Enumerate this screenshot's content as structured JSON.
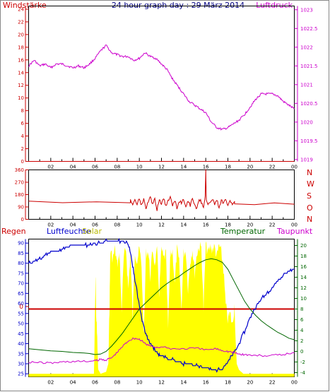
{
  "header": {
    "left_label": "Windstärke",
    "title": "24 hour graph day : 29 März 2014",
    "right_label": "Luftdruck"
  },
  "x_ticks": [
    "02",
    "04",
    "06",
    "08",
    "10",
    "12",
    "14",
    "16",
    "18",
    "20",
    "22",
    "00"
  ],
  "direction_labels": [
    "N",
    "W",
    "S",
    "O",
    "N"
  ],
  "bottom_header": {
    "regen": "Regen",
    "luftfeuchte": "Luftfeuchte",
    "solar": "Solar",
    "temperatur": "Temperatur",
    "taupunkt": "Taupunkt"
  },
  "colors": {
    "red": "#cc0000",
    "magenta": "#cc00cc",
    "blue": "#0000cc",
    "green": "#006600",
    "yellow": "#ffff00",
    "navy_title": "#000080"
  },
  "chart_data": [
    {
      "type": "line",
      "x_unit": "hour",
      "xlim": [
        0,
        24
      ],
      "left_axis": {
        "ticks": [
          0,
          2,
          4,
          6,
          8,
          10,
          12,
          14,
          16,
          18,
          20,
          22,
          24
        ],
        "ylim": [
          0,
          24.5
        ]
      },
      "right_axis": {
        "ticks": [
          1019,
          1019.5,
          1020,
          1020.5,
          1021,
          1021.5,
          1022,
          1022.5,
          1023
        ],
        "ylim": [
          1018.95,
          1023.1
        ]
      },
      "series": [
        {
          "axis": "left",
          "color": "#cc0000",
          "x": [
            0,
            24
          ],
          "values": [
            0,
            0
          ]
        },
        {
          "axis": "right",
          "color": "#cc00cc",
          "x": [
            0,
            0.5,
            1,
            1.5,
            2,
            2.5,
            3,
            3.5,
            4,
            4.5,
            5,
            5.5,
            6,
            6.5,
            7,
            7.5,
            8,
            8.5,
            9,
            9.5,
            10,
            10.5,
            11,
            11.5,
            12,
            12.5,
            13,
            13.5,
            14,
            14.5,
            15,
            15.5,
            16,
            16.5,
            17,
            17.5,
            18,
            18.5,
            19,
            19.5,
            20,
            20.5,
            21,
            21.5,
            22,
            22.5,
            23,
            23.5,
            24
          ],
          "values": [
            1021.5,
            1021.65,
            1021.5,
            1021.55,
            1021.45,
            1021.55,
            1021.55,
            1021.5,
            1021.45,
            1021.5,
            1021.45,
            1021.55,
            1021.7,
            1021.9,
            1022.05,
            1021.85,
            1021.8,
            1021.75,
            1021.75,
            1021.65,
            1021.7,
            1021.85,
            1021.75,
            1021.7,
            1021.55,
            1021.4,
            1021.15,
            1020.95,
            1020.75,
            1020.55,
            1020.45,
            1020.35,
            1020.25,
            1020.0,
            1019.85,
            1019.8,
            1019.85,
            1019.95,
            1020.05,
            1020.2,
            1020.4,
            1020.6,
            1020.75,
            1020.75,
            1020.75,
            1020.7,
            1020.55,
            1020.45,
            1020.35
          ]
        }
      ]
    },
    {
      "type": "line",
      "x_unit": "hour",
      "xlim": [
        0,
        24
      ],
      "left_axis": {
        "ticks": [
          0,
          90,
          180,
          270,
          360
        ],
        "ylim": [
          0,
          360
        ]
      },
      "series": [
        {
          "color": "#cc0000",
          "x": [
            0,
            9.2,
            9.2,
            9.4,
            9.6,
            9.8,
            10.0,
            10.2,
            10.4,
            10.6,
            10.8,
            11.0,
            11.2,
            11.4,
            11.6,
            11.8,
            12.0,
            12.2,
            12.4,
            12.6,
            12.8,
            13.0,
            13.2,
            13.4,
            13.6,
            13.8,
            14.0,
            14.2,
            14.4,
            14.6,
            14.8,
            15.0,
            15.2,
            15.4,
            15.6,
            15.8,
            15.95,
            16.0,
            16.05,
            16.2,
            16.4,
            16.6,
            16.8,
            17.0,
            17.2,
            17.4,
            17.6,
            17.8,
            18.0,
            18.2,
            18.4,
            18.6,
            18.6,
            24
          ],
          "values": [
            130,
            130,
            150,
            95,
            140,
            115,
            145,
            100,
            150,
            80,
            125,
            160,
            110,
            145,
            70,
            140,
            115,
            150,
            95,
            130,
            165,
            105,
            140,
            80,
            135,
            120,
            150,
            90,
            140,
            100,
            155,
            110,
            75,
            150,
            125,
            95,
            165,
            360,
            140,
            100,
            130,
            150,
            110,
            145,
            85,
            140,
            120,
            150,
            95,
            135,
            110,
            130,
            110,
            110
          ]
        }
      ]
    },
    {
      "type": "line",
      "x_unit": "hour",
      "xlim": [
        0,
        24
      ],
      "left_axis": {
        "ticks": [
          25,
          30,
          35,
          40,
          45,
          50,
          55,
          60,
          65,
          70,
          75,
          80,
          85,
          90
        ],
        "ylim": [
          23.5,
          92
        ],
        "label": "Luftfeuchte"
      },
      "right_axis": {
        "ticks": [
          -4,
          -2,
          0,
          2,
          4,
          6,
          8,
          10,
          12,
          14,
          16,
          18,
          20
        ],
        "ylim": [
          -4.8,
          21.2
        ]
      },
      "marker_value": {
        "label": "0"
      },
      "series": [
        {
          "name": "Solar",
          "axis": "left",
          "color": "#ffff00",
          "type": "area",
          "x": [
            0,
            5.9,
            6.0,
            6.05,
            6.1,
            6.2,
            6.3,
            6.5,
            7.0,
            7.2,
            7.3,
            7.35,
            7.4,
            7.6,
            7.8,
            8.0,
            8.2,
            8.4,
            8.6,
            8.8,
            9.0,
            9.2,
            9.4,
            9.6,
            9.8,
            10.0,
            10.2,
            10.4,
            10.6,
            10.8,
            11.0,
            11.2,
            11.4,
            11.6,
            11.8,
            12.0,
            12.2,
            12.4,
            12.6,
            12.8,
            13.0,
            13.2,
            13.4,
            13.6,
            13.8,
            14.0,
            14.2,
            14.4,
            14.6,
            14.8,
            15.0,
            15.2,
            15.4,
            15.6,
            15.8,
            16.0,
            16.2,
            16.4,
            16.6,
            16.8,
            17.0,
            17.2,
            17.4,
            17.6,
            17.8,
            18.0,
            18.2,
            18.4,
            18.6,
            18.8,
            19.0,
            19.2,
            19.4,
            24
          ],
          "values": [
            25,
            25,
            60,
            78,
            58,
            45,
            27,
            25,
            26,
            30,
            60,
            78,
            89,
            85,
            90,
            82,
            88,
            60,
            86,
            90,
            70,
            88,
            55,
            89,
            84,
            90,
            82,
            45,
            88,
            89,
            76,
            90,
            82,
            89,
            68,
            90,
            85,
            88,
            50,
            87,
            89,
            72,
            90,
            83,
            60,
            88,
            89,
            70,
            84,
            90,
            78,
            88,
            91,
            91,
            60,
            92,
            88,
            91,
            90,
            91,
            86,
            92,
            88,
            80,
            62,
            55,
            58,
            52,
            62,
            30,
            27,
            26,
            25,
            25
          ]
        },
        {
          "name": "Regen",
          "axis": "right",
          "color": "#cc0000",
          "x": [
            0,
            24
          ],
          "values": [
            8,
            8
          ]
        },
        {
          "name": "Luftfeuchte",
          "axis": "left",
          "color": "#0000cc",
          "x": [
            0,
            0.5,
            1.0,
            1.5,
            2.0,
            2.5,
            3.0,
            3.5,
            4.0,
            4.5,
            5.0,
            5.5,
            6.0,
            6.5,
            7.0,
            7.5,
            8.0,
            8.5,
            9.0,
            9.3,
            9.6,
            9.9,
            10.2,
            10.5,
            10.8,
            11.1,
            11.4,
            11.7,
            12.0,
            12.5,
            13.0,
            13.5,
            14.0,
            14.5,
            15.0,
            15.5,
            16.0,
            16.5,
            17.0,
            17.5,
            18.0,
            18.5,
            19.0,
            19.5,
            20.0,
            20.5,
            21.0,
            21.5,
            22.0,
            22.5,
            23.0,
            23.5,
            24.0
          ],
          "values": [
            80,
            81,
            82,
            84,
            86,
            86,
            87,
            88,
            89,
            89,
            89,
            89,
            90,
            90,
            91,
            91,
            91,
            91,
            90,
            82,
            72,
            62,
            53,
            46,
            42,
            39,
            37,
            35,
            34,
            33,
            32,
            31,
            30,
            30,
            29,
            29,
            28,
            27,
            27,
            28,
            31,
            35,
            40,
            46,
            53,
            58,
            62,
            65,
            68,
            71,
            74,
            76,
            77
          ]
        },
        {
          "name": "Temperatur",
          "axis": "right",
          "color": "#006600",
          "x": [
            0,
            1,
            2,
            3,
            4,
            5,
            5.5,
            6.0,
            6.5,
            7.0,
            7.5,
            8.0,
            8.5,
            9.0,
            9.5,
            10.0,
            10.5,
            11.0,
            11.5,
            12.0,
            12.5,
            13.0,
            13.5,
            14.0,
            14.5,
            15.0,
            15.5,
            16.0,
            16.5,
            17.0,
            17.5,
            18.0,
            18.5,
            19.0,
            19.5,
            20.0,
            20.5,
            21.0,
            21.5,
            22.0,
            22.5,
            23.0,
            23.5,
            24.0
          ],
          "values": [
            0.5,
            0.3,
            0.1,
            0,
            -0.2,
            -0.3,
            -0.4,
            -0.6,
            -0.5,
            0,
            1.0,
            2.2,
            3.5,
            5,
            6.5,
            8,
            9,
            10,
            11,
            12,
            12.8,
            13.5,
            14,
            14.8,
            15.5,
            16.2,
            16.8,
            17.3,
            17.5,
            17.3,
            16.8,
            15.5,
            13.5,
            11.5,
            9.5,
            8,
            6.8,
            5.8,
            5,
            4.3,
            3.6,
            3.1,
            2.5,
            2.2
          ]
        },
        {
          "name": "Taupunkt",
          "axis": "right",
          "color": "#cc00cc",
          "x": [
            0,
            1,
            2,
            3,
            4,
            5,
            6,
            6.5,
            7.0,
            7.5,
            8.0,
            8.5,
            9.0,
            9.5,
            10.0,
            10.5,
            11.0,
            11.5,
            12.0,
            13.0,
            14.0,
            15.0,
            16.0,
            17.0,
            17.5,
            18.0,
            18.5,
            19.0,
            19.5,
            20.0,
            21.0,
            22.0,
            23.0,
            24.0
          ],
          "values": [
            -2,
            -2.1,
            -2.2,
            -2.0,
            -1.9,
            -1.9,
            -1.8,
            -1.5,
            -1.6,
            -1.2,
            -0.2,
            1.0,
            2,
            2.5,
            2.3,
            1.5,
            1.0,
            0.8,
            0.8,
            0.5,
            0.5,
            0.6,
            0.3,
            0.5,
            0.2,
            0,
            -0.2,
            -0.5,
            -0.6,
            -0.7,
            -0.8,
            -0.8,
            -0.6,
            -0.2
          ]
        }
      ]
    }
  ]
}
